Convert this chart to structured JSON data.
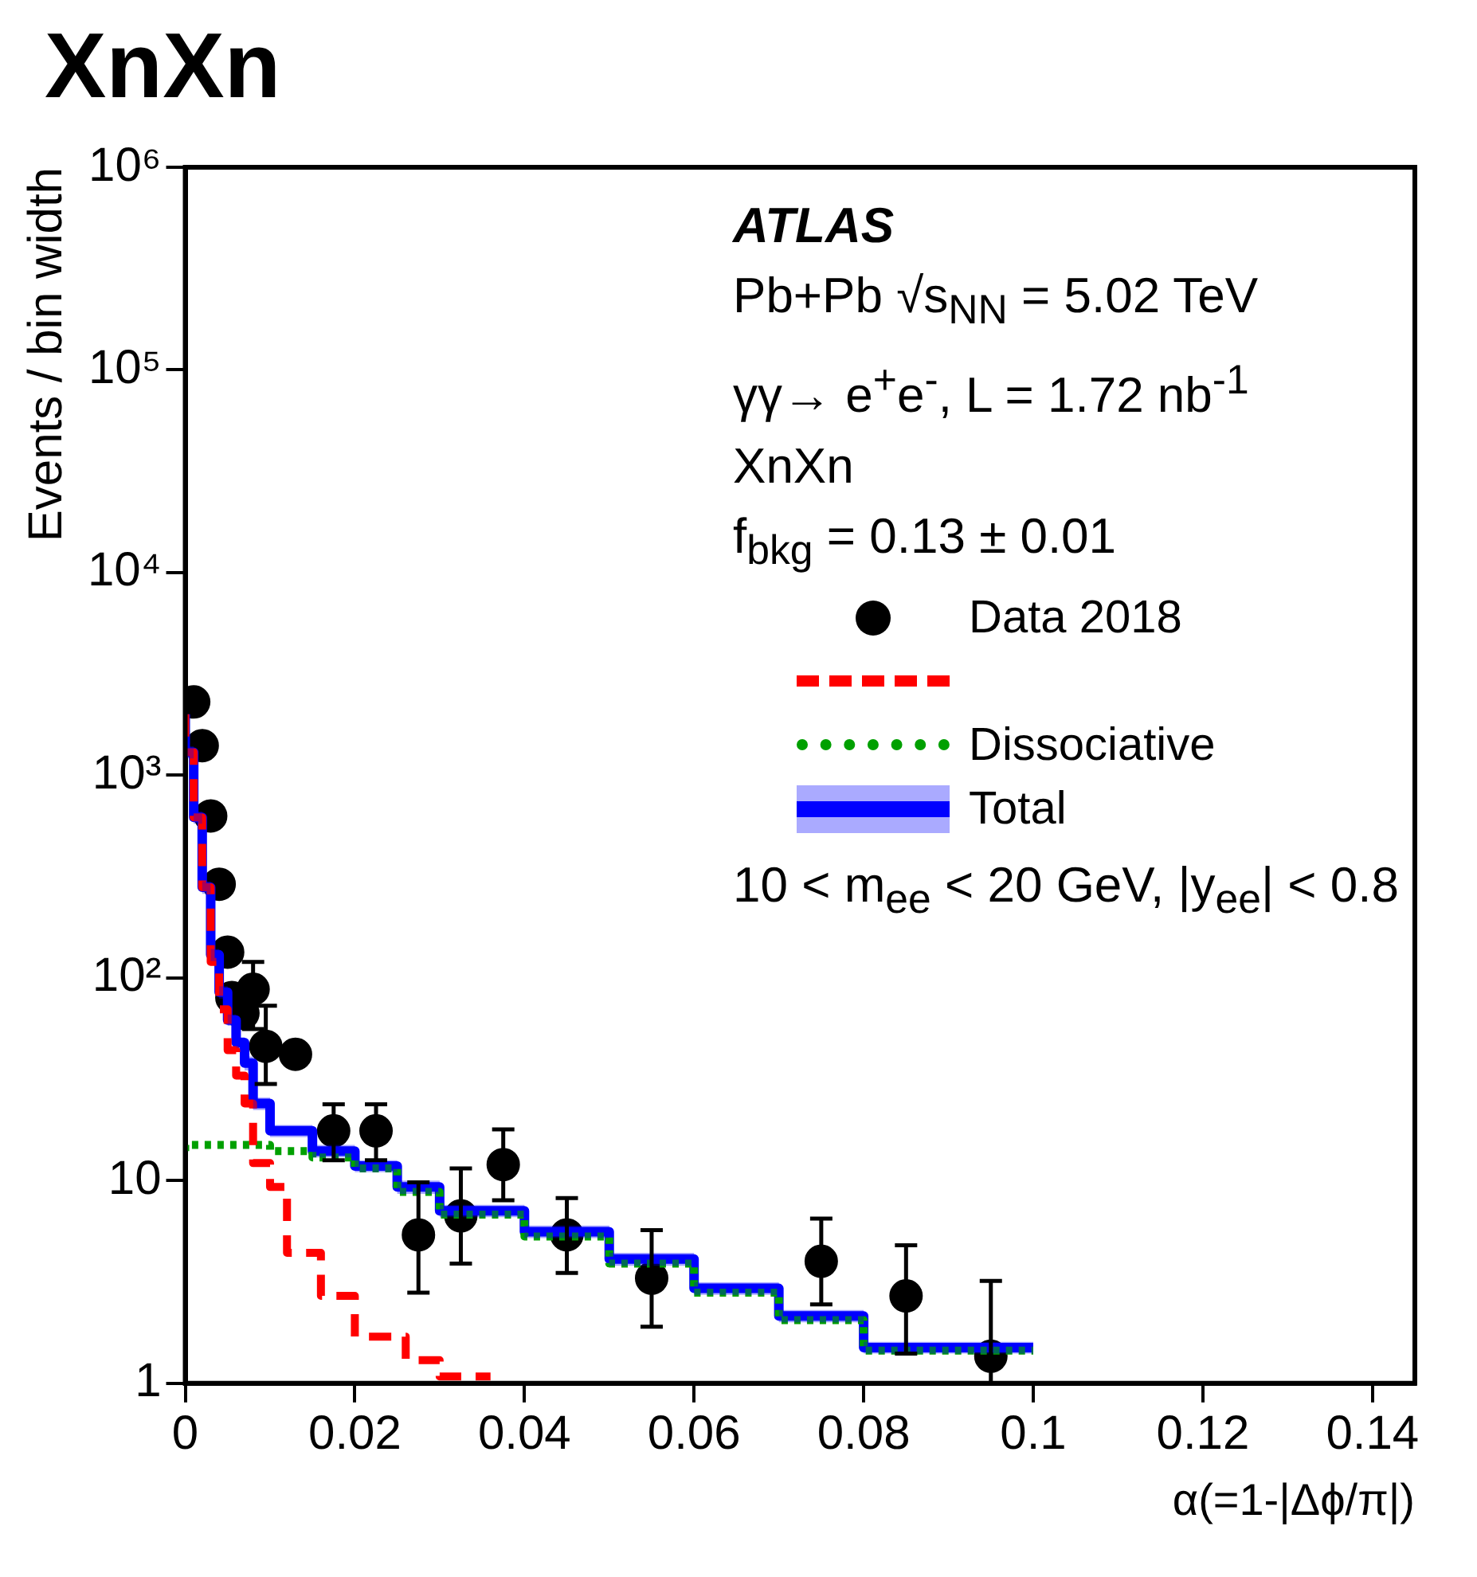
{
  "chart_data": {
    "type": "step",
    "title": "XnXn",
    "xlabel": "α(=1-|Δϕ/π|)",
    "ylabel": "Events / bin width",
    "xlim": [
      0,
      0.145
    ],
    "xticks": [
      0,
      0.02,
      0.04,
      0.06,
      0.08,
      0.1,
      0.12,
      0.14
    ],
    "ylim": [
      1,
      1000000
    ],
    "yticks": [
      1,
      10,
      {
        "value": 100,
        "label": "10²"
      },
      {
        "value": 1000,
        "label": "10³"
      },
      {
        "value": 10000,
        "label": "10⁴"
      },
      {
        "value": 100000,
        "label": "10⁵"
      },
      {
        "value": 1000000,
        "label": "10⁶"
      }
    ],
    "log": "y",
    "grid": false,
    "legend": "top right",
    "annotations": [
      "ATLAS",
      "Pb+Pb √s$_{NN}$ = 5.02 TeV",
      "γγ→ e$^{+}$e$^{-}$, L = 1.72 nb$^{-1}$",
      "XnXn",
      "f$_{bkg}$ =  0.13 ± 0.01",
      "10 < m$_{ee}$ < 20 GeV, |y$_{ee}$| < 0.8"
    ],
    "series": [
      {
        "name": "Data 2018",
        "type": "scatter",
        "marker": "circle",
        "color": "#000000",
        "x": [
          0.001,
          0.002,
          0.003,
          0.004,
          0.005,
          0.0055,
          0.0068,
          0.008,
          0.0095,
          0.013,
          0.0175,
          0.0225,
          0.0275,
          0.0325,
          0.0375,
          0.045,
          0.055,
          0.075,
          0.085,
          0.095
        ],
        "values": [
          2300,
          1400,
          630,
          290,
          134,
          80,
          67,
          88,
          46,
          42,
          17.6,
          17.6,
          5.4,
          6.7,
          12,
          5.4,
          3.3,
          4,
          2.7,
          1.36
        ],
        "errors": [
          null,
          null,
          null,
          null,
          null,
          null,
          null,
          [
            56,
            120
          ],
          [
            30,
            73
          ],
          null,
          [
            12.6,
            23.8
          ],
          [
            12.6,
            23.8
          ],
          [
            2.8,
            9.8
          ],
          [
            3.9,
            11.5
          ],
          [
            8,
            17.9
          ],
          [
            3.5,
            8.2
          ],
          [
            1.9,
            5.7
          ],
          [
            2.45,
            6.5
          ],
          [
            1.4,
            4.8
          ],
          [
            1,
            3.2
          ]
        ]
      },
      {
        "line_style": "dashed",
        "color": "#ff0000",
        "x": [
          0,
          0.001,
          0.002,
          0.003,
          0.004,
          0.005,
          0.006,
          0.007,
          0.008,
          0.01,
          0.012,
          0.016,
          0.02,
          0.026,
          0.03,
          0.033,
          0.036
        ],
        "values": [
          2000,
          1300,
          620,
          280,
          120,
          70,
          44,
          33,
          24,
          12.2,
          9.3,
          4.4,
          2.7,
          1.7,
          1.3,
          1.08,
          1.08
        ]
      },
      {
        "name": "Dissociative",
        "line_style": "dotted",
        "color": "#00a000",
        "x": [
          0,
          0.005,
          0.01,
          0.015,
          0.02,
          0.025,
          0.03,
          0.04,
          0.05,
          0.06,
          0.07,
          0.08,
          0.09,
          0.1
        ],
        "values": [
          14,
          15,
          15,
          14,
          13,
          11.5,
          8.8,
          6.8,
          5.3,
          3.9,
          2.8,
          2.05,
          1.45,
          1.45
        ]
      },
      {
        "name": "Total",
        "line_style": "solid",
        "color": "#0000ff",
        "x": [
          0,
          0.001,
          0.002,
          0.003,
          0.004,
          0.005,
          0.006,
          0.007,
          0.008,
          0.01,
          0.015,
          0.02,
          0.025,
          0.03,
          0.04,
          0.05,
          0.06,
          0.07,
          0.08,
          0.09,
          0.1
        ],
        "values": [
          2000,
          1300,
          620,
          280,
          130,
          85,
          62,
          48,
          38,
          24,
          17.6,
          14,
          11.8,
          9.3,
          7.1,
          5.6,
          4.1,
          2.94,
          2.15,
          1.5,
          1.5
        ],
        "lower": [
          1860,
          1210,
          577,
          260,
          121,
          79,
          58,
          45,
          35,
          22.3,
          16.4,
          13,
          11,
          8.6,
          6.6,
          5.2,
          3.8,
          2.73,
          2,
          1.4,
          1.4
        ],
        "upper": [
          2140,
          1390,
          663,
          300,
          139,
          91,
          66,
          51,
          41,
          25.7,
          18.8,
          15,
          12.6,
          10,
          7.6,
          6,
          4.4,
          3.15,
          2.3,
          1.6,
          1.6
        ]
      }
    ]
  }
}
